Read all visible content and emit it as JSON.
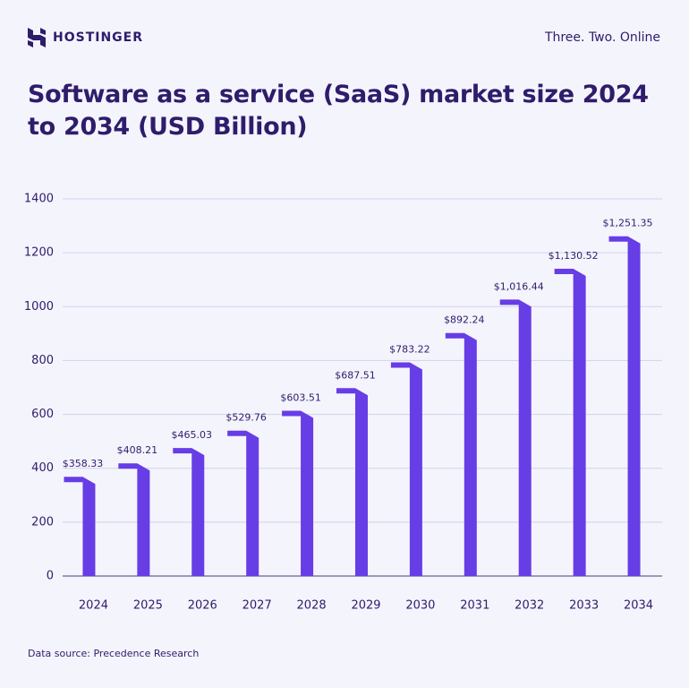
{
  "brand": "HOSTINGER",
  "tagline": "Three. Two. Online",
  "chart_data": {
    "type": "bar",
    "title": "Software as a service (SaaS) market size 2024 to 2034 (USD Billion)",
    "categories": [
      "2024",
      "2025",
      "2026",
      "2027",
      "2028",
      "2029",
      "2030",
      "2031",
      "2032",
      "2033",
      "2034"
    ],
    "values": [
      358.33,
      408.21,
      465.03,
      529.76,
      603.51,
      687.51,
      783.22,
      892.24,
      1016.44,
      1130.52,
      1251.35
    ],
    "value_labels": [
      "$358.33",
      "$408.21",
      "$465.03",
      "$529.76",
      "$603.51",
      "$687.51",
      "$783.22",
      "$892.24",
      "$1,016.44",
      "$1,130.52",
      "$1,251.35"
    ],
    "color": "#673de6",
    "ylim": [
      0,
      1400
    ],
    "yticks": [
      0,
      200,
      400,
      600,
      800,
      1000,
      1200,
      1400
    ],
    "grid": true,
    "source": "Data source: Precedence Research"
  }
}
